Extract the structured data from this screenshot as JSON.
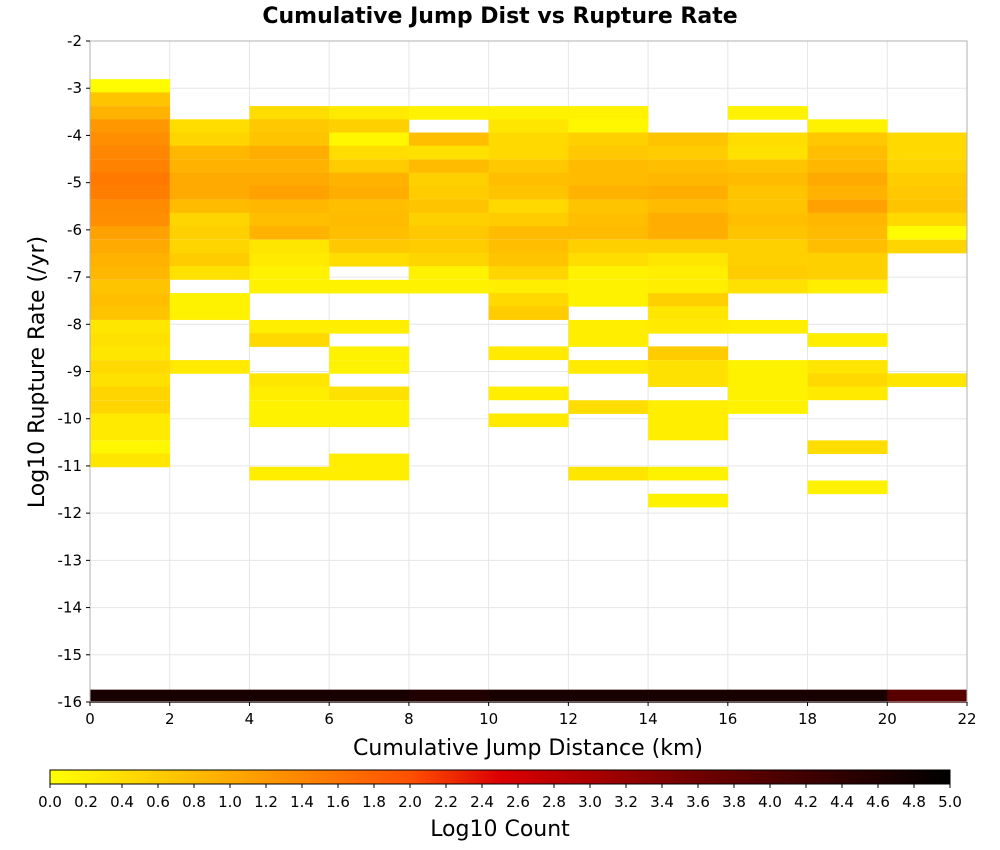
{
  "chart_data": {
    "type": "heatmap",
    "title": "Cumulative Jump Dist vs Rupture Rate",
    "xlabel": "Cumulative Jump Distance (km)",
    "ylabel": "Log10 Rupture Rate (/yr)",
    "xlim": [
      0,
      22
    ],
    "ylim": [
      -16,
      -2
    ],
    "x_ticks": [
      "0",
      "2",
      "4",
      "6",
      "8",
      "10",
      "12",
      "14",
      "16",
      "18",
      "20",
      "22"
    ],
    "y_ticks": [
      "-2",
      "-3",
      "-4",
      "-5",
      "-6",
      "-7",
      "-8",
      "-9",
      "-10",
      "-11",
      "-12",
      "-13",
      "-14",
      "-15",
      "-16"
    ],
    "x_bin_width": 2,
    "y_bin_height": 0.283,
    "colorbar": {
      "label": "Log10 Count",
      "range": [
        0,
        5
      ],
      "ticks": [
        "0.0",
        "0.2",
        "0.4",
        "0.6",
        "0.8",
        "1.0",
        "1.2",
        "1.4",
        "1.6",
        "1.8",
        "2.0",
        "2.2",
        "2.4",
        "2.6",
        "2.8",
        "3.0",
        "3.2",
        "3.4",
        "3.6",
        "3.8",
        "4.0",
        "4.2",
        "4.4",
        "4.6",
        "4.8",
        "5.0"
      ]
    },
    "columns": [
      {
        "x": 0,
        "cells": [
          {
            "y": -2.95,
            "v": 0.05
          },
          {
            "y": -3.23,
            "v": 0.7
          },
          {
            "y": -3.52,
            "v": 0.9
          },
          {
            "y": -3.8,
            "v": 1.2
          },
          {
            "y": -4.08,
            "v": 1.3
          },
          {
            "y": -4.36,
            "v": 1.4
          },
          {
            "y": -4.65,
            "v": 1.45
          },
          {
            "y": -4.93,
            "v": 1.55
          },
          {
            "y": -5.21,
            "v": 1.5
          },
          {
            "y": -5.5,
            "v": 1.35
          },
          {
            "y": -5.78,
            "v": 1.3
          },
          {
            "y": -6.06,
            "v": 1.1
          },
          {
            "y": -6.35,
            "v": 1.0
          },
          {
            "y": -6.63,
            "v": 0.9
          },
          {
            "y": -6.91,
            "v": 0.85
          },
          {
            "y": -7.2,
            "v": 0.7
          },
          {
            "y": -7.48,
            "v": 0.75
          },
          {
            "y": -7.76,
            "v": 0.7
          },
          {
            "y": -8.05,
            "v": 0.3
          },
          {
            "y": -8.33,
            "v": 0.35
          },
          {
            "y": -8.61,
            "v": 0.3
          },
          {
            "y": -8.9,
            "v": 0.45
          },
          {
            "y": -9.18,
            "v": 0.35
          },
          {
            "y": -9.46,
            "v": 0.5
          },
          {
            "y": -9.75,
            "v": 0.5
          },
          {
            "y": -10.03,
            "v": 0.25
          },
          {
            "y": -10.31,
            "v": 0.25
          },
          {
            "y": -10.6,
            "v": 0.1
          },
          {
            "y": -10.88,
            "v": 0.3
          }
        ]
      },
      {
        "x": 2,
        "cells": [
          {
            "y": -3.8,
            "v": 0.4
          },
          {
            "y": -4.08,
            "v": 0.5
          },
          {
            "y": -4.36,
            "v": 0.85
          },
          {
            "y": -4.65,
            "v": 0.9
          },
          {
            "y": -4.93,
            "v": 1.0
          },
          {
            "y": -5.21,
            "v": 1.0
          },
          {
            "y": -5.5,
            "v": 0.8
          },
          {
            "y": -5.78,
            "v": 0.5
          },
          {
            "y": -6.06,
            "v": 0.55
          },
          {
            "y": -6.35,
            "v": 0.5
          },
          {
            "y": -6.63,
            "v": 0.6
          },
          {
            "y": -6.91,
            "v": 0.35
          },
          {
            "y": -7.48,
            "v": 0.15
          },
          {
            "y": -7.76,
            "v": 0.15
          },
          {
            "y": -8.9,
            "v": 0.25
          }
        ]
      },
      {
        "x": 4,
        "cells": [
          {
            "y": -3.52,
            "v": 0.4
          },
          {
            "y": -3.8,
            "v": 0.65
          },
          {
            "y": -4.08,
            "v": 0.7
          },
          {
            "y": -4.36,
            "v": 0.95
          },
          {
            "y": -4.65,
            "v": 0.9
          },
          {
            "y": -4.93,
            "v": 1.0
          },
          {
            "y": -5.21,
            "v": 1.1
          },
          {
            "y": -5.5,
            "v": 0.85
          },
          {
            "y": -5.78,
            "v": 0.75
          },
          {
            "y": -6.06,
            "v": 0.9
          },
          {
            "y": -6.35,
            "v": 0.3
          },
          {
            "y": -6.63,
            "v": 0.25
          },
          {
            "y": -6.91,
            "v": 0.15
          },
          {
            "y": -7.2,
            "v": 0.15
          },
          {
            "y": -8.05,
            "v": 0.2
          },
          {
            "y": -8.33,
            "v": 0.45
          },
          {
            "y": -9.18,
            "v": 0.3
          },
          {
            "y": -9.46,
            "v": 0.2
          },
          {
            "y": -9.75,
            "v": 0.15
          },
          {
            "y": -10.03,
            "v": 0.15
          },
          {
            "y": -11.16,
            "v": 0.2
          }
        ]
      },
      {
        "x": 6,
        "cells": [
          {
            "y": -3.52,
            "v": 0.25
          },
          {
            "y": -3.8,
            "v": 0.55
          },
          {
            "y": -4.08,
            "v": 0.1
          },
          {
            "y": -4.36,
            "v": 0.4
          },
          {
            "y": -4.65,
            "v": 0.6
          },
          {
            "y": -4.93,
            "v": 0.9
          },
          {
            "y": -5.21,
            "v": 0.95
          },
          {
            "y": -5.5,
            "v": 0.75
          },
          {
            "y": -5.78,
            "v": 0.8
          },
          {
            "y": -6.06,
            "v": 0.75
          },
          {
            "y": -6.35,
            "v": 0.65
          },
          {
            "y": -6.63,
            "v": 0.4
          },
          {
            "y": -7.2,
            "v": 0.15
          },
          {
            "y": -8.05,
            "v": 0.2
          },
          {
            "y": -8.61,
            "v": 0.15
          },
          {
            "y": -8.9,
            "v": 0.15
          },
          {
            "y": -9.46,
            "v": 0.35
          },
          {
            "y": -9.75,
            "v": 0.15
          },
          {
            "y": -10.03,
            "v": 0.15
          },
          {
            "y": -10.88,
            "v": 0.2
          },
          {
            "y": -11.16,
            "v": 0.2
          }
        ]
      },
      {
        "x": 8,
        "cells": [
          {
            "y": -3.52,
            "v": 0.15
          },
          {
            "y": -4.08,
            "v": 0.75
          },
          {
            "y": -4.36,
            "v": 0.35
          },
          {
            "y": -4.65,
            "v": 0.8
          },
          {
            "y": -4.93,
            "v": 0.55
          },
          {
            "y": -5.21,
            "v": 0.6
          },
          {
            "y": -5.5,
            "v": 0.7
          },
          {
            "y": -5.78,
            "v": 0.55
          },
          {
            "y": -6.06,
            "v": 0.65
          },
          {
            "y": -6.35,
            "v": 0.6
          },
          {
            "y": -6.63,
            "v": 0.5
          },
          {
            "y": -6.91,
            "v": 0.15
          },
          {
            "y": -7.2,
            "v": 0.15
          }
        ]
      },
      {
        "x": 10,
        "cells": [
          {
            "y": -3.52,
            "v": 0.15
          },
          {
            "y": -3.8,
            "v": 0.3
          },
          {
            "y": -4.08,
            "v": 0.45
          },
          {
            "y": -4.36,
            "v": 0.45
          },
          {
            "y": -4.65,
            "v": 0.65
          },
          {
            "y": -4.93,
            "v": 0.75
          },
          {
            "y": -5.21,
            "v": 0.7
          },
          {
            "y": -5.5,
            "v": 0.45
          },
          {
            "y": -5.78,
            "v": 0.6
          },
          {
            "y": -6.06,
            "v": 0.8
          },
          {
            "y": -6.35,
            "v": 0.75
          },
          {
            "y": -6.63,
            "v": 0.7
          },
          {
            "y": -6.91,
            "v": 0.5
          },
          {
            "y": -7.2,
            "v": 0.2
          },
          {
            "y": -7.48,
            "v": 0.45
          },
          {
            "y": -7.76,
            "v": 0.6
          },
          {
            "y": -8.61,
            "v": 0.25
          },
          {
            "y": -9.46,
            "v": 0.2
          },
          {
            "y": -10.03,
            "v": 0.25
          }
        ]
      },
      {
        "x": 12,
        "cells": [
          {
            "y": -3.52,
            "v": 0.15
          },
          {
            "y": -3.8,
            "v": 0.1
          },
          {
            "y": -4.08,
            "v": 0.55
          },
          {
            "y": -4.36,
            "v": 0.65
          },
          {
            "y": -4.65,
            "v": 0.8
          },
          {
            "y": -4.93,
            "v": 0.8
          },
          {
            "y": -5.21,
            "v": 0.9
          },
          {
            "y": -5.5,
            "v": 0.7
          },
          {
            "y": -5.78,
            "v": 0.75
          },
          {
            "y": -6.06,
            "v": 0.8
          },
          {
            "y": -6.35,
            "v": 0.55
          },
          {
            "y": -6.63,
            "v": 0.4
          },
          {
            "y": -6.91,
            "v": 0.15
          },
          {
            "y": -7.2,
            "v": 0.15
          },
          {
            "y": -7.48,
            "v": 0.15
          },
          {
            "y": -8.05,
            "v": 0.2
          },
          {
            "y": -8.33,
            "v": 0.2
          },
          {
            "y": -8.9,
            "v": 0.25
          },
          {
            "y": -9.75,
            "v": 0.4
          },
          {
            "y": -11.16,
            "v": 0.3
          }
        ]
      },
      {
        "x": 14,
        "cells": [
          {
            "y": -4.08,
            "v": 0.7
          },
          {
            "y": -4.36,
            "v": 0.6
          },
          {
            "y": -4.65,
            "v": 0.75
          },
          {
            "y": -4.93,
            "v": 0.85
          },
          {
            "y": -5.21,
            "v": 0.95
          },
          {
            "y": -5.5,
            "v": 0.8
          },
          {
            "y": -5.78,
            "v": 0.95
          },
          {
            "y": -6.06,
            "v": 0.95
          },
          {
            "y": -6.35,
            "v": 0.55
          },
          {
            "y": -6.63,
            "v": 0.3
          },
          {
            "y": -6.91,
            "v": 0.2
          },
          {
            "y": -7.2,
            "v": 0.2
          },
          {
            "y": -7.48,
            "v": 0.55
          },
          {
            "y": -7.76,
            "v": 0.3
          },
          {
            "y": -8.05,
            "v": 0.25
          },
          {
            "y": -8.61,
            "v": 0.6
          },
          {
            "y": -8.9,
            "v": 0.35
          },
          {
            "y": -9.18,
            "v": 0.35
          },
          {
            "y": -9.75,
            "v": 0.2
          },
          {
            "y": -10.03,
            "v": 0.2
          },
          {
            "y": -10.31,
            "v": 0.2
          },
          {
            "y": -11.16,
            "v": 0.15
          },
          {
            "y": -11.73,
            "v": 0.15
          }
        ]
      },
      {
        "x": 16,
        "cells": [
          {
            "y": -3.52,
            "v": 0.15
          },
          {
            "y": -4.08,
            "v": 0.4
          },
          {
            "y": -4.36,
            "v": 0.35
          },
          {
            "y": -4.65,
            "v": 0.7
          },
          {
            "y": -4.93,
            "v": 0.8
          },
          {
            "y": -5.21,
            "v": 0.7
          },
          {
            "y": -5.5,
            "v": 0.7
          },
          {
            "y": -5.78,
            "v": 0.75
          },
          {
            "y": -6.06,
            "v": 0.7
          },
          {
            "y": -6.35,
            "v": 0.55
          },
          {
            "y": -6.63,
            "v": 0.55
          },
          {
            "y": -6.91,
            "v": 0.6
          },
          {
            "y": -7.2,
            "v": 0.35
          },
          {
            "y": -8.05,
            "v": 0.2
          },
          {
            "y": -8.9,
            "v": 0.15
          },
          {
            "y": -9.18,
            "v": 0.15
          },
          {
            "y": -9.46,
            "v": 0.15
          },
          {
            "y": -9.75,
            "v": 0.15
          }
        ]
      },
      {
        "x": 18,
        "cells": [
          {
            "y": -3.8,
            "v": 0.15
          },
          {
            "y": -4.08,
            "v": 0.65
          },
          {
            "y": -4.36,
            "v": 0.75
          },
          {
            "y": -4.65,
            "v": 0.85
          },
          {
            "y": -4.93,
            "v": 1.0
          },
          {
            "y": -5.21,
            "v": 0.9
          },
          {
            "y": -5.5,
            "v": 1.1
          },
          {
            "y": -5.78,
            "v": 0.85
          },
          {
            "y": -6.06,
            "v": 0.8
          },
          {
            "y": -6.35,
            "v": 0.75
          },
          {
            "y": -6.63,
            "v": 0.55
          },
          {
            "y": -6.91,
            "v": 0.55
          },
          {
            "y": -7.2,
            "v": 0.2
          },
          {
            "y": -8.33,
            "v": 0.2
          },
          {
            "y": -8.9,
            "v": 0.3
          },
          {
            "y": -9.18,
            "v": 0.45
          },
          {
            "y": -9.46,
            "v": 0.25
          },
          {
            "y": -10.6,
            "v": 0.4
          },
          {
            "y": -11.45,
            "v": 0.15
          }
        ]
      },
      {
        "x": 20,
        "cells": [
          {
            "y": -4.08,
            "v": 0.45
          },
          {
            "y": -4.36,
            "v": 0.45
          },
          {
            "y": -4.65,
            "v": 0.5
          },
          {
            "y": -4.93,
            "v": 0.6
          },
          {
            "y": -5.21,
            "v": 0.65
          },
          {
            "y": -5.5,
            "v": 0.7
          },
          {
            "y": -5.78,
            "v": 0.45
          },
          {
            "y": -6.06,
            "v": 0.05
          },
          {
            "y": -6.35,
            "v": 0.5
          },
          {
            "y": -9.18,
            "v": 0.3
          }
        ]
      }
    ],
    "bottom_row": {
      "y": -15.88,
      "values": [
        4.7,
        4.7,
        4.7,
        4.7,
        4.6,
        4.7,
        4.7,
        4.7,
        4.7,
        4.7,
        3.9
      ]
    }
  }
}
